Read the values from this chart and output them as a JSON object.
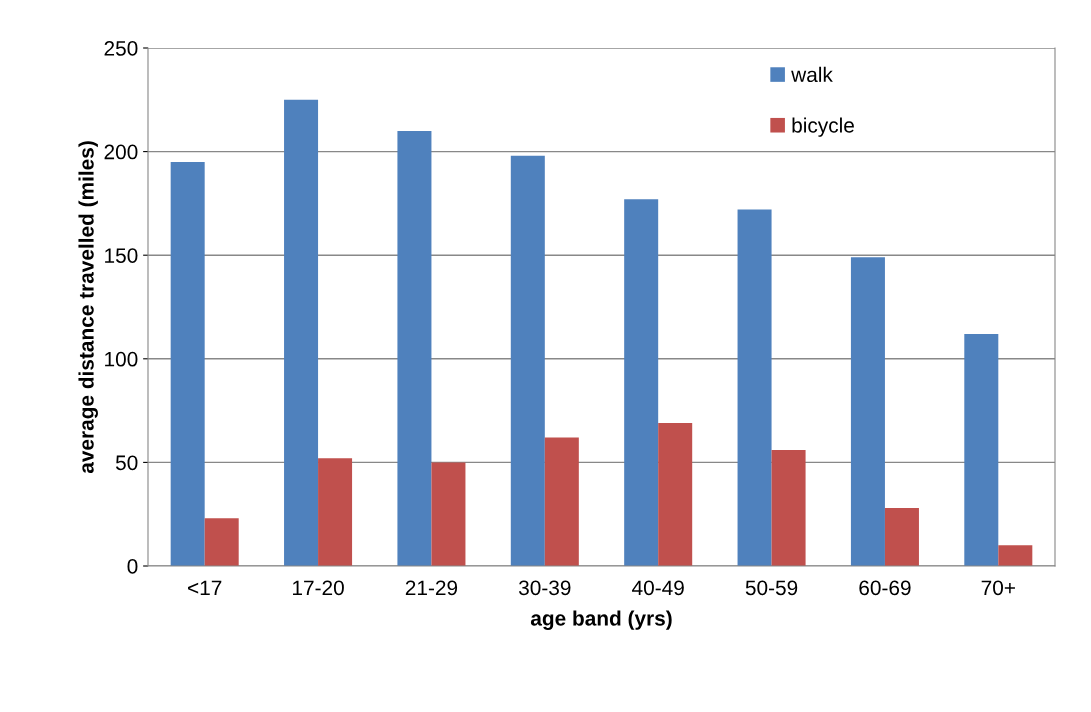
{
  "chart_data": {
    "type": "bar",
    "xlabel": "age band (yrs)",
    "ylabel": "average distance travelled (miles)",
    "categories": [
      "<17",
      "17-20",
      "21-29",
      "30-39",
      "40-49",
      "50-59",
      "60-69",
      "70+"
    ],
    "series": [
      {
        "name": "walk",
        "color": "#4f81bd",
        "values": [
          195,
          225,
          210,
          198,
          177,
          172,
          149,
          112
        ]
      },
      {
        "name": "bicycle",
        "color": "#c0504d",
        "values": [
          23,
          52,
          50,
          62,
          69,
          56,
          28,
          10
        ]
      }
    ],
    "ylim": [
      0,
      250
    ],
    "yticks": [
      0,
      50,
      100,
      150,
      200,
      250
    ],
    "grid": "y",
    "legend": "top right"
  }
}
